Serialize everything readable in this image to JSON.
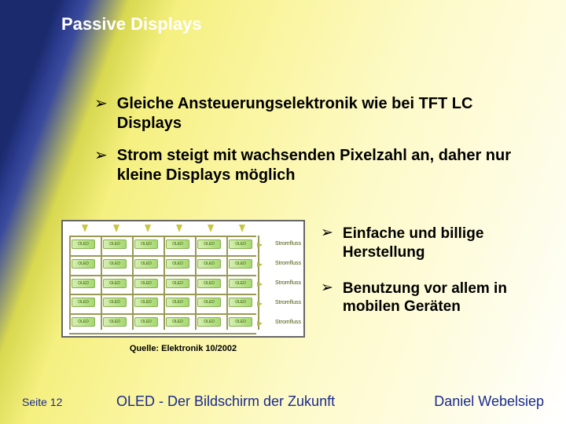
{
  "title": "Passive Displays",
  "bullets_top": [
    "Gleiche Ansteuerungselektronik wie bei TFT LC Displays",
    "Strom steigt mit wachsenden Pixelzahl an, daher nur kleine Displays möglich"
  ],
  "bullets_side": [
    "Einfache und billige Herstellung",
    "Benutzung vor allem in mobilen Geräten"
  ],
  "diagram": {
    "caption": "Quelle: Elektronik 10/2002",
    "row_label": "Stromfluss",
    "cell_label": "OLED",
    "cols": 6,
    "rows": 5,
    "colors": {
      "border": "#666666",
      "grid": "#9a9a55",
      "cell_fill_light": "#d5efb0",
      "cell_fill_dark": "#a5d870",
      "cell_border": "#88b050",
      "arrow": "#c8c840"
    }
  },
  "footer": {
    "page": "Seite 12",
    "title": "OLED - Der Bildschirm der Zukunft",
    "author": "Daniel Webelsiep"
  },
  "style": {
    "accent_dark": "#1a2a6c",
    "accent_yellow": "#f5f080",
    "text_color": "#000000",
    "footer_color": "#1a2a8c",
    "title_fontsize": 22,
    "bullet_fontsize": 20,
    "caption_fontsize": 11
  }
}
